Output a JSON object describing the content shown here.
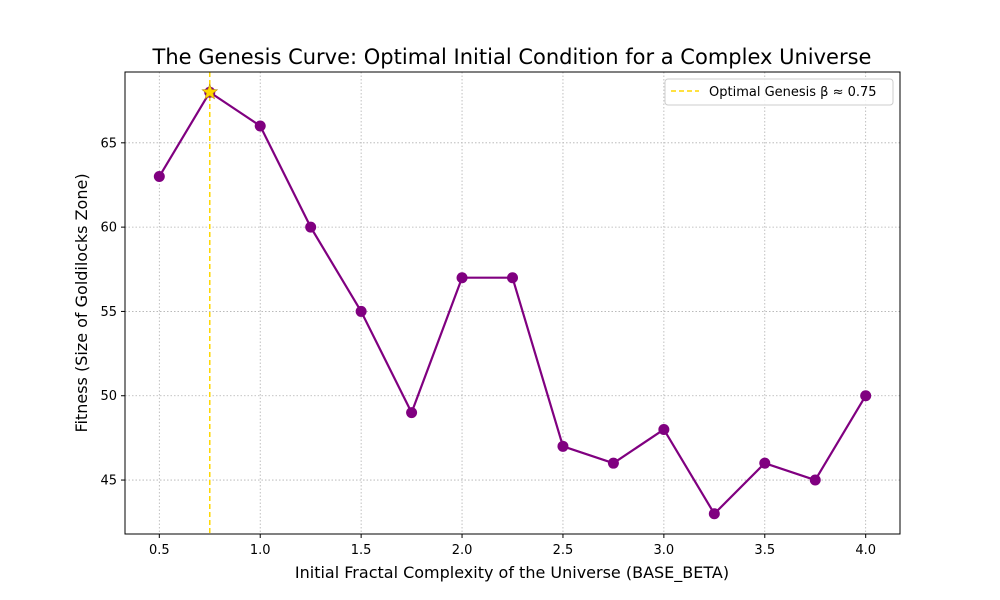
{
  "chart_data": {
    "type": "line",
    "title": "The Genesis Curve: Optimal Initial Condition for a Complex Universe",
    "xlabel": "Initial Fractal Complexity of the Universe (BASE_BETA)",
    "ylabel": "Fitness (Size of Goldilocks Zone)",
    "xlim": [
      0.33,
      4.17
    ],
    "ylim": [
      41.8,
      69.2
    ],
    "x_ticks": [
      0.5,
      1.0,
      1.5,
      2.0,
      2.5,
      3.0,
      3.5,
      4.0
    ],
    "x_tick_labels": [
      "0.5",
      "1.0",
      "1.5",
      "2.0",
      "2.5",
      "3.0",
      "3.5",
      "4.0"
    ],
    "y_ticks": [
      45,
      50,
      55,
      60,
      65
    ],
    "y_tick_labels": [
      "45",
      "50",
      "55",
      "60",
      "65"
    ],
    "grid": true,
    "legend_position": "top-right",
    "series": [
      {
        "color": "#800080",
        "x": [
          0.5,
          0.75,
          1.0,
          1.25,
          1.5,
          1.75,
          2.0,
          2.25,
          2.5,
          2.75,
          3.0,
          3.25,
          3.5,
          3.75,
          4.0
        ],
        "y": [
          63,
          68,
          66,
          60,
          55,
          49,
          57,
          57,
          47,
          46,
          48,
          43,
          46,
          45,
          50
        ]
      }
    ],
    "optimal_line": {
      "name": "Optimal Genesis β ≈ 0.75",
      "x": 0.75,
      "color": "#FFD700",
      "style": "dashed"
    },
    "optimal_marker": {
      "x": 0.75,
      "y": 68,
      "shape": "star",
      "color": "#FFD700"
    }
  }
}
